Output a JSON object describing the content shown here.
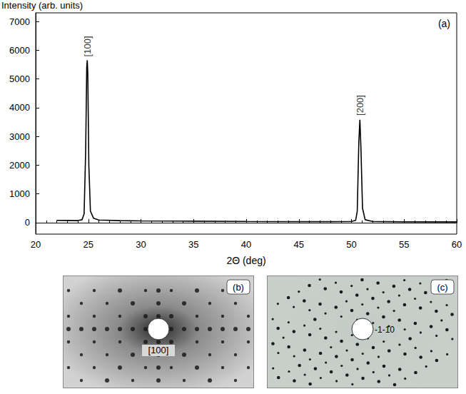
{
  "chart_data": {
    "type": "line",
    "panel_label": "(a)",
    "xlabel": "2Θ (deg)",
    "ylabel": "Intensity (arb. units)",
    "x": [
      22,
      23,
      24,
      24.4,
      24.6,
      24.75,
      24.85,
      24.9,
      24.95,
      25.05,
      25.2,
      25.5,
      26,
      28,
      30,
      35,
      40,
      45,
      48,
      50,
      50.4,
      50.55,
      50.7,
      50.8,
      50.9,
      51.05,
      51.3,
      52,
      55,
      60
    ],
    "values": [
      80,
      75,
      70,
      100,
      300,
      2500,
      5400,
      5650,
      5200,
      2000,
      400,
      150,
      90,
      70,
      60,
      50,
      40,
      35,
      35,
      40,
      80,
      400,
      2800,
      3580,
      2600,
      500,
      100,
      40,
      30,
      25
    ],
    "color": "#000000",
    "xlim": [
      20,
      60
    ],
    "xticks": [
      20,
      25,
      30,
      35,
      40,
      45,
      50,
      55,
      60
    ],
    "ylim": [
      -400,
      7300
    ],
    "yticks": [
      0,
      1000,
      2000,
      3000,
      4000,
      5000,
      6000,
      7000
    ],
    "grid": false,
    "annotations": [
      {
        "text": "[100]",
        "x": 24.9,
        "y": 5700
      },
      {
        "text": "[200]",
        "x": 50.8,
        "y": 3650
      }
    ]
  },
  "images": [
    {
      "panel_label": "(b)",
      "label": "[100]"
    },
    {
      "panel_label": "(c)",
      "label": "-1-10"
    }
  ]
}
